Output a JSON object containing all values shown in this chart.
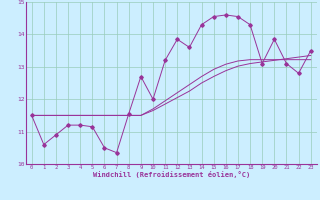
{
  "title": "",
  "xlabel": "Windchill (Refroidissement éolien,°C)",
  "ylabel": "",
  "bg_color": "#cceeff",
  "line_color": "#993399",
  "grid_color": "#99ccbb",
  "xlim": [
    -0.5,
    23.5
  ],
  "ylim": [
    10.0,
    15.0
  ],
  "yticks": [
    10,
    11,
    12,
    13,
    14,
    15
  ],
  "xticks": [
    0,
    1,
    2,
    3,
    4,
    5,
    6,
    7,
    8,
    9,
    10,
    11,
    12,
    13,
    14,
    15,
    16,
    17,
    18,
    19,
    20,
    21,
    22,
    23
  ],
  "series_main": [
    11.5,
    10.6,
    10.9,
    11.2,
    11.2,
    11.15,
    10.5,
    10.35,
    11.55,
    12.7,
    12.0,
    13.2,
    13.85,
    13.6,
    14.3,
    14.55,
    14.6,
    14.55,
    14.3,
    13.1,
    13.85,
    13.1,
    12.8,
    13.5
  ],
  "series_trend1": [
    11.5,
    11.5,
    11.5,
    11.5,
    11.5,
    11.5,
    11.5,
    11.5,
    11.5,
    11.5,
    11.65,
    11.85,
    12.05,
    12.25,
    12.5,
    12.7,
    12.88,
    13.02,
    13.1,
    13.15,
    13.2,
    13.25,
    13.3,
    13.35
  ],
  "series_trend2": [
    11.5,
    11.5,
    11.5,
    11.5,
    11.5,
    11.5,
    11.5,
    11.5,
    11.5,
    11.5,
    11.7,
    11.95,
    12.2,
    12.45,
    12.7,
    12.92,
    13.08,
    13.18,
    13.22,
    13.22,
    13.22,
    13.22,
    13.22,
    13.22
  ]
}
